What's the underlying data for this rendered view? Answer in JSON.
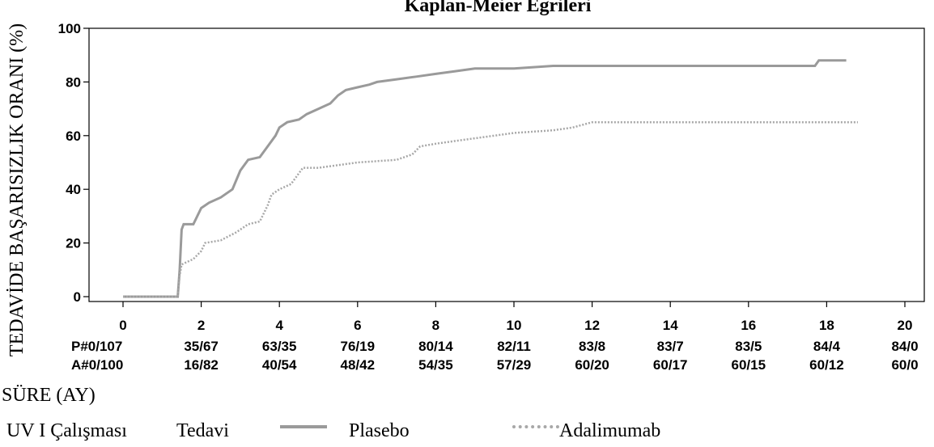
{
  "chart_data": {
    "type": "line",
    "title": "Kaplan-Meier Eğrileri",
    "ylabel": "TEDAVİDE BAŞARISIZLIK ORANI (%)",
    "xlabel": "SÜRE (AY)",
    "xlim": [
      0,
      20
    ],
    "ylim": [
      0,
      100
    ],
    "x_ticks": [
      0,
      2,
      4,
      6,
      8,
      10,
      12,
      14,
      16,
      18,
      20
    ],
    "y_ticks": [
      0,
      20,
      40,
      60,
      80,
      100
    ],
    "grid": false,
    "series": [
      {
        "name": "Plasebo",
        "style": "solid",
        "color": "#9a9a9a",
        "points": [
          [
            0,
            0
          ],
          [
            1.4,
            0
          ],
          [
            1.45,
            10
          ],
          [
            1.5,
            25
          ],
          [
            1.55,
            27
          ],
          [
            1.8,
            27
          ],
          [
            2,
            33
          ],
          [
            2.2,
            35
          ],
          [
            2.5,
            37
          ],
          [
            2.8,
            40
          ],
          [
            3,
            47
          ],
          [
            3.2,
            51
          ],
          [
            3.5,
            52
          ],
          [
            3.7,
            56
          ],
          [
            3.9,
            60
          ],
          [
            4,
            63
          ],
          [
            4.2,
            65
          ],
          [
            4.5,
            66
          ],
          [
            4.7,
            68
          ],
          [
            5,
            70
          ],
          [
            5.3,
            72
          ],
          [
            5.5,
            75
          ],
          [
            5.7,
            77
          ],
          [
            6,
            78
          ],
          [
            6.3,
            79
          ],
          [
            6.5,
            80
          ],
          [
            7,
            81
          ],
          [
            7.5,
            82
          ],
          [
            8,
            83
          ],
          [
            8.5,
            84
          ],
          [
            9,
            85
          ],
          [
            10,
            85
          ],
          [
            11,
            86
          ],
          [
            12,
            86
          ],
          [
            13,
            86
          ],
          [
            14,
            86
          ],
          [
            15,
            86
          ],
          [
            16,
            86
          ],
          [
            17,
            86
          ],
          [
            17.7,
            86
          ],
          [
            17.8,
            88
          ],
          [
            18.5,
            88
          ]
        ]
      },
      {
        "name": "Adalimumab",
        "style": "dotted",
        "color": "#a8a8a8",
        "points": [
          [
            0,
            0
          ],
          [
            1.4,
            0
          ],
          [
            1.45,
            8
          ],
          [
            1.5,
            12
          ],
          [
            1.8,
            14
          ],
          [
            2,
            17
          ],
          [
            2.1,
            20
          ],
          [
            2.5,
            21
          ],
          [
            2.9,
            24
          ],
          [
            3.2,
            27
          ],
          [
            3.5,
            28
          ],
          [
            3.7,
            34
          ],
          [
            3.8,
            38
          ],
          [
            4,
            40
          ],
          [
            4.3,
            42
          ],
          [
            4.6,
            48
          ],
          [
            5,
            48
          ],
          [
            5.5,
            49
          ],
          [
            6,
            50
          ],
          [
            7,
            51
          ],
          [
            7.4,
            53
          ],
          [
            7.6,
            56
          ],
          [
            8,
            57
          ],
          [
            8.5,
            58
          ],
          [
            9,
            59
          ],
          [
            9.5,
            60
          ],
          [
            10,
            61
          ],
          [
            11,
            62
          ],
          [
            11.5,
            63
          ],
          [
            12,
            65
          ],
          [
            13,
            65
          ],
          [
            14,
            65
          ],
          [
            15,
            65
          ],
          [
            16,
            65
          ],
          [
            17,
            65
          ],
          [
            18,
            65
          ],
          [
            18.8,
            65
          ]
        ]
      }
    ],
    "risk_table": {
      "row_labels": [
        "P#0/107",
        "A#0/100"
      ],
      "columns": [
        {
          "x": 2,
          "values": [
            "35/67",
            "16/82"
          ]
        },
        {
          "x": 4,
          "values": [
            "63/35",
            "40/54"
          ]
        },
        {
          "x": 6,
          "values": [
            "76/19",
            "48/42"
          ]
        },
        {
          "x": 8,
          "values": [
            "80/14",
            "54/35"
          ]
        },
        {
          "x": 10,
          "values": [
            "82/11",
            "57/29"
          ]
        },
        {
          "x": 12,
          "values": [
            "83/8",
            "60/20"
          ]
        },
        {
          "x": 14,
          "values": [
            "83/7",
            "60/17"
          ]
        },
        {
          "x": 16,
          "values": [
            "83/5",
            "60/15"
          ]
        },
        {
          "x": 18,
          "values": [
            "84/4",
            "60/12"
          ]
        },
        {
          "x": 20,
          "values": [
            "84/0",
            "60/0"
          ]
        }
      ]
    },
    "legend": {
      "placement": "bottom",
      "study": "UV I Çalışması",
      "heading": "Tedavi",
      "items": [
        "Plasebo",
        "Adalimumab"
      ]
    }
  }
}
